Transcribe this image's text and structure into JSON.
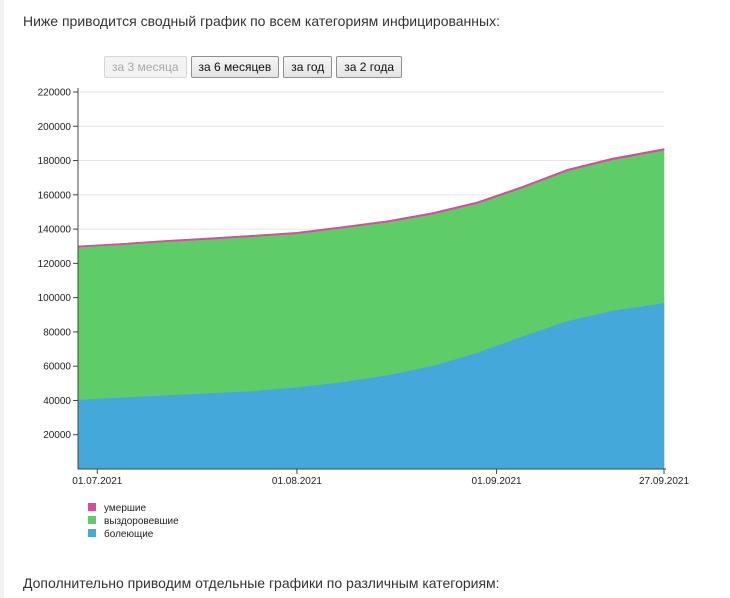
{
  "page": {
    "intro_text": "Ниже приводится сводный график по всем категориям инфицированных:",
    "outro_text": "Дополнительно приводим отдельные графики по различным категориям:"
  },
  "range_buttons": [
    {
      "label": "за 3 месяца",
      "disabled": true
    },
    {
      "label": "за 6 месяцев",
      "disabled": false
    },
    {
      "label": "за год",
      "disabled": false
    },
    {
      "label": "за 2 года",
      "disabled": false
    }
  ],
  "chart_data": {
    "type": "area",
    "stacked": true,
    "x": [
      "2021-06-28",
      "2021-07-04",
      "2021-07-11",
      "2021-07-18",
      "2021-07-25",
      "2021-08-01",
      "2021-08-08",
      "2021-08-15",
      "2021-08-22",
      "2021-08-29",
      "2021-09-05",
      "2021-09-12",
      "2021-09-19",
      "2021-09-27"
    ],
    "series": [
      {
        "name": "болеющие",
        "color": "#45a8db",
        "values": [
          40500,
          41800,
          43000,
          44300,
          45600,
          47800,
          50800,
          54800,
          60200,
          68000,
          77500,
          86500,
          92500,
          97000
        ]
      },
      {
        "name": "выздоровевшие",
        "color": "#5fcd67",
        "values": [
          89000,
          88900,
          89500,
          89700,
          90000,
          89500,
          89800,
          89200,
          88500,
          87000,
          86500,
          87500,
          88000,
          89000
        ]
      },
      {
        "name": "умершие",
        "color": "#d94b9e",
        "values": [
          700,
          720,
          740,
          760,
          780,
          800,
          820,
          840,
          860,
          880,
          900,
          920,
          940,
          960
        ]
      }
    ],
    "xticks": [
      {
        "date": "2021-07-01",
        "label": "01.07.2021"
      },
      {
        "date": "2021-08-01",
        "label": "01.08.2021"
      },
      {
        "date": "2021-09-01",
        "label": "01.09.2021"
      },
      {
        "date": "2021-09-27",
        "label": "27.09.2021"
      }
    ],
    "yticks": [
      20000,
      40000,
      60000,
      80000,
      100000,
      120000,
      140000,
      160000,
      180000,
      200000,
      220000
    ],
    "ylim": [
      0,
      220000
    ],
    "xlim": [
      "2021-06-28",
      "2021-09-27"
    ],
    "grid": true,
    "legend": [
      "умершие",
      "выздоровевшие",
      "болеющие"
    ],
    "legend_position": "bottom-left"
  }
}
